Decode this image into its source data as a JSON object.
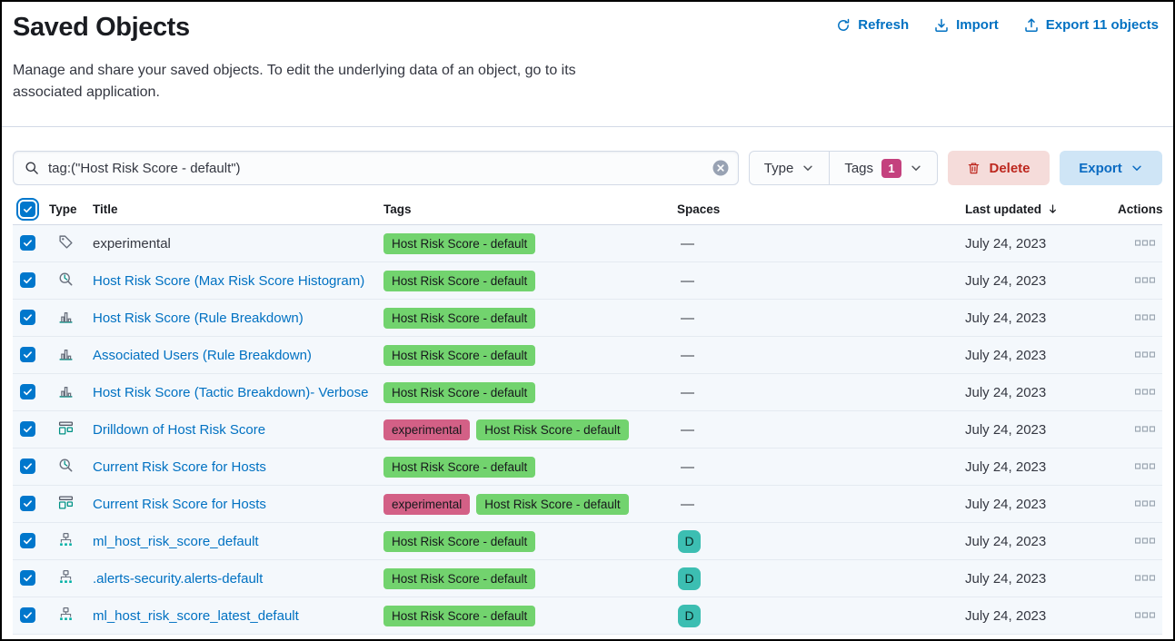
{
  "page": {
    "title": "Saved Objects",
    "description": "Manage and share your saved objects. To edit the underlying data of an object, go to its associated application.",
    "header_actions": [
      {
        "label": "Refresh",
        "icon": "refresh-icon"
      },
      {
        "label": "Import",
        "icon": "import-icon"
      },
      {
        "label": "Export 11 objects",
        "icon": "export-icon"
      }
    ]
  },
  "toolbar": {
    "search": {
      "value": "tag:(\"Host Risk Score - default\")",
      "icon": "search-icon",
      "clear_icon": "clear-icon"
    },
    "type_filter": {
      "label": "Type"
    },
    "tags_filter": {
      "label": "Tags",
      "count": "1"
    },
    "delete_button": {
      "label": "Delete",
      "icon": "trash-icon"
    },
    "export_button": {
      "label": "Export"
    }
  },
  "colors": {
    "link_blue": "#0071c2",
    "checkbox_blue": "#0077cc",
    "tag_green": "#72d36e",
    "tag_pink": "#d36086",
    "space_teal": "#3cbeb2",
    "badge_magenta": "#c4417e",
    "delete_red": "#bd271e"
  },
  "table": {
    "select_all": {
      "checked": true
    },
    "columns": {
      "type": "Type",
      "title": "Title",
      "tags": "Tags",
      "spaces": "Spaces",
      "updated": "Last updated",
      "actions": "Actions"
    },
    "sort": {
      "column": "Last updated",
      "direction": "desc",
      "icon": "sort-down-icon"
    },
    "empty_space_placeholder": "—",
    "actions_icon": "boxes-horizontal-icon",
    "rows": [
      {
        "checked": true,
        "icon": "tag-icon",
        "title": "experimental",
        "is_link": false,
        "tags": [
          {
            "label": "Host Risk Score - default",
            "color": "#72d36e"
          }
        ],
        "space": null,
        "updated": "July 24, 2023"
      },
      {
        "checked": true,
        "icon": "lens-icon",
        "title": "Host Risk Score (Max Risk Score Histogram)",
        "is_link": true,
        "tags": [
          {
            "label": "Host Risk Score - default",
            "color": "#72d36e"
          }
        ],
        "space": null,
        "updated": "July 24, 2023"
      },
      {
        "checked": true,
        "icon": "bar-chart-icon",
        "title": "Host Risk Score (Rule Breakdown)",
        "is_link": true,
        "tags": [
          {
            "label": "Host Risk Score - default",
            "color": "#72d36e"
          }
        ],
        "space": null,
        "updated": "July 24, 2023"
      },
      {
        "checked": true,
        "icon": "bar-chart-icon",
        "title": "Associated Users (Rule Breakdown)",
        "is_link": true,
        "tags": [
          {
            "label": "Host Risk Score - default",
            "color": "#72d36e"
          }
        ],
        "space": null,
        "updated": "July 24, 2023"
      },
      {
        "checked": true,
        "icon": "bar-chart-icon",
        "title": "Host Risk Score (Tactic Breakdown)- Verbose",
        "is_link": true,
        "tags": [
          {
            "label": "Host Risk Score - default",
            "color": "#72d36e"
          }
        ],
        "space": null,
        "updated": "July 24, 2023"
      },
      {
        "checked": true,
        "icon": "dashboard-icon",
        "title": "Drilldown of Host Risk Score",
        "is_link": true,
        "tags": [
          {
            "label": "experimental",
            "color": "#d36086"
          },
          {
            "label": "Host Risk Score - default",
            "color": "#72d36e"
          }
        ],
        "space": null,
        "updated": "July 24, 2023"
      },
      {
        "checked": true,
        "icon": "lens-icon",
        "title": "Current Risk Score for Hosts",
        "is_link": true,
        "tags": [
          {
            "label": "Host Risk Score - default",
            "color": "#72d36e"
          }
        ],
        "space": null,
        "updated": "July 24, 2023"
      },
      {
        "checked": true,
        "icon": "dashboard-icon",
        "title": "Current Risk Score for Hosts",
        "is_link": true,
        "tags": [
          {
            "label": "experimental",
            "color": "#d36086"
          },
          {
            "label": "Host Risk Score - default",
            "color": "#72d36e"
          }
        ],
        "space": null,
        "updated": "July 24, 2023"
      },
      {
        "checked": true,
        "icon": "index-pattern-icon",
        "title": "ml_host_risk_score_default",
        "is_link": true,
        "tags": [
          {
            "label": "Host Risk Score - default",
            "color": "#72d36e"
          }
        ],
        "space": {
          "initial": "D",
          "color": "#3cbeb2"
        },
        "updated": "July 24, 2023"
      },
      {
        "checked": true,
        "icon": "index-pattern-icon",
        "title": ".alerts-security.alerts-default",
        "is_link": true,
        "tags": [
          {
            "label": "Host Risk Score - default",
            "color": "#72d36e"
          }
        ],
        "space": {
          "initial": "D",
          "color": "#3cbeb2"
        },
        "updated": "July 24, 2023"
      },
      {
        "checked": true,
        "icon": "index-pattern-icon",
        "title": "ml_host_risk_score_latest_default",
        "is_link": true,
        "tags": [
          {
            "label": "Host Risk Score - default",
            "color": "#72d36e"
          }
        ],
        "space": {
          "initial": "D",
          "color": "#3cbeb2"
        },
        "updated": "July 24, 2023"
      }
    ]
  }
}
